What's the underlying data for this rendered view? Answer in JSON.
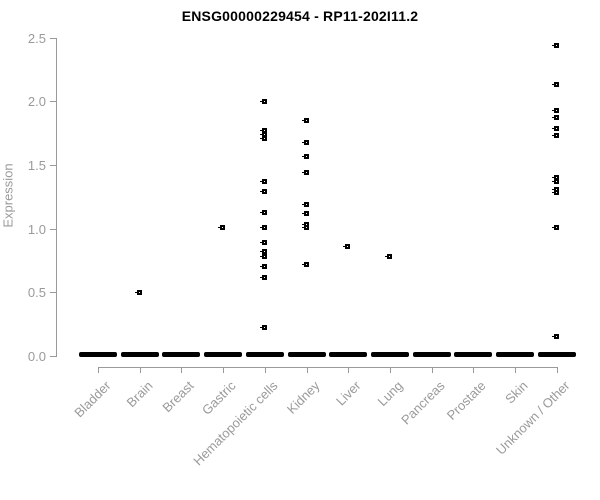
{
  "chart_data": {
    "type": "scatter",
    "title": "ENSG00000229454 - RP11-202I11.2",
    "xlabel": "",
    "ylabel": "Expression",
    "ylim": [
      0.0,
      2.5
    ],
    "yticks": [
      "0.0",
      "0.5",
      "1.0",
      "1.5",
      "2.0",
      "2.5"
    ],
    "grid": false,
    "legend": false,
    "point_style": "small open black square",
    "categories": [
      "Bladder",
      "Brain",
      "Breast",
      "Gastric",
      "Hematopoietic cells",
      "Kidney",
      "Liver",
      "Lung",
      "Pancreas",
      "Prostate",
      "Skin",
      "Unknown / Other"
    ],
    "series": [
      {
        "category": "Bladder",
        "values": []
      },
      {
        "category": "Brain",
        "values": [
          0.5
        ]
      },
      {
        "category": "Breast",
        "values": []
      },
      {
        "category": "Gastric",
        "values": [
          1.01
        ]
      },
      {
        "category": "Hematopoietic cells",
        "values": [
          2.0,
          1.77,
          1.74,
          1.71,
          1.37,
          1.29,
          1.13,
          1.01,
          0.89,
          0.82,
          0.78,
          0.7,
          0.62,
          0.22
        ]
      },
      {
        "category": "Kidney",
        "values": [
          1.85,
          1.68,
          1.57,
          1.44,
          1.19,
          1.12,
          1.03,
          1.01,
          0.72
        ]
      },
      {
        "category": "Liver",
        "values": [
          0.86
        ]
      },
      {
        "category": "Lung",
        "values": [
          0.78
        ]
      },
      {
        "category": "Pancreas",
        "values": []
      },
      {
        "category": "Prostate",
        "values": []
      },
      {
        "category": "Skin",
        "values": []
      },
      {
        "category": "Unknown / Other",
        "values": [
          2.44,
          2.13,
          1.93,
          1.87,
          1.79,
          1.73,
          1.4,
          1.37,
          1.31,
          1.28,
          1.01,
          0.15
        ]
      }
    ],
    "zero_cluster_all_categories": true,
    "zero_cluster_note": "Every category shows a dense horizontal cluster of points at expression 0.0",
    "colors": {
      "background": "#ffffff",
      "points": "#000000",
      "zero_cluster": "#000000",
      "axis": "#9a9a9a",
      "title_text": "#000000"
    }
  }
}
